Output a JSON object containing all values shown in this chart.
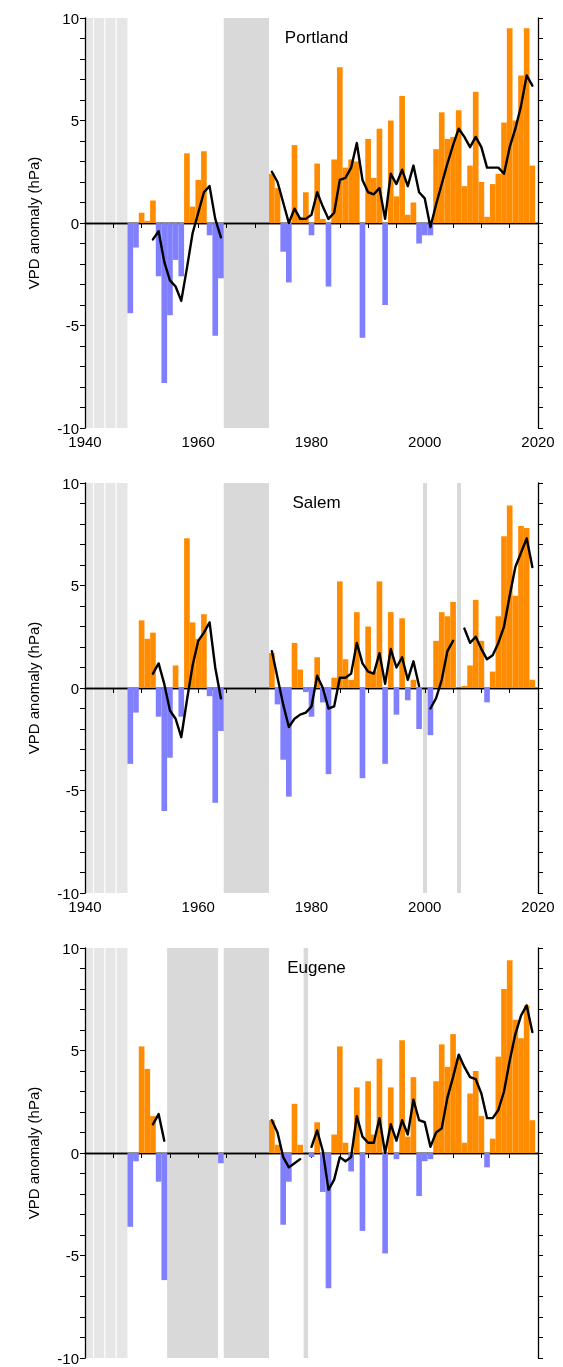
{
  "chart_data": [
    {
      "type": "bar",
      "title": "Portland",
      "ylabel": "VPD anomaly (hPa)",
      "xlim": [
        1940,
        2020
      ],
      "xticks": [
        1940,
        {
          "value": 1945,
          "label": null
        },
        {
          "value": 1950,
          "label": null
        },
        {
          "value": 1955,
          "label": null
        },
        1960,
        {
          "value": 1965,
          "label": null
        },
        {
          "value": 1970,
          "label": null
        },
        {
          "value": 1975,
          "label": null
        },
        1980,
        {
          "value": 1985,
          "label": null
        },
        {
          "value": 1990,
          "label": null
        },
        {
          "value": 1995,
          "label": null
        },
        2000,
        {
          "value": 2005,
          "label": null
        },
        {
          "value": 2010,
          "label": null
        },
        {
          "value": 2015,
          "label": null
        },
        2020
      ],
      "ylim": [
        -10,
        10
      ],
      "yticks": [
        -10,
        {
          "value": -9,
          "label": null
        },
        {
          "value": -8,
          "label": null
        },
        {
          "value": -7,
          "label": null
        },
        {
          "value": -6,
          "label": null
        },
        -5,
        {
          "value": -4,
          "label": null
        },
        {
          "value": -3,
          "label": null
        },
        {
          "value": -2,
          "label": null
        },
        {
          "value": -1,
          "label": null
        },
        0,
        {
          "value": 1,
          "label": null
        },
        {
          "value": 2,
          "label": null
        },
        {
          "value": 3,
          "label": null
        },
        {
          "value": 4,
          "label": null
        },
        5,
        {
          "value": 6,
          "label": null
        },
        {
          "value": 7,
          "label": null
        },
        {
          "value": 8,
          "label": null
        },
        {
          "value": 9,
          "label": null
        },
        10
      ],
      "bands": [
        {
          "axis": "x",
          "from": 1940,
          "to": 1941.4,
          "color": "#e6e6e6"
        },
        {
          "axis": "x",
          "from": 1941.6,
          "to": 1943.4,
          "color": "#e6e6e6"
        },
        {
          "axis": "x",
          "from": 1943.6,
          "to": 1945.4,
          "color": "#e6e6e6"
        },
        {
          "axis": "x",
          "from": 1945.6,
          "to": 1947.5,
          "color": "#e6e6e6"
        },
        {
          "axis": "x",
          "from": 1964.5,
          "to": 1972.5,
          "color": "#d9d9d9"
        }
      ],
      "series": [
        {
          "color": "#ff8c00",
          "x": [
            1950,
            1951,
            1952,
            1958,
            1959,
            1960,
            1961,
            1973,
            1974,
            1977,
            1978,
            1979,
            1981,
            1982,
            1984,
            1985,
            1986,
            1987,
            1988,
            1990,
            1991,
            1992,
            1994,
            1995,
            1996,
            1997,
            1998,
            2002,
            2003,
            2004,
            2005,
            2006,
            2007,
            2008,
            2009,
            2010,
            2011,
            2012,
            2013,
            2014,
            2015,
            2016,
            2017,
            2018,
            2019
          ],
          "values": [
            0.5,
            0.1,
            1.1,
            3.4,
            0.8,
            2.1,
            3.5,
            2.4,
            1.7,
            3.8,
            0.3,
            1.5,
            2.9,
            0.2,
            3.1,
            7.6,
            2.7,
            3.1,
            3.0,
            4.1,
            2.2,
            4.6,
            5.0,
            1.3,
            6.2,
            0.4,
            1.0,
            3.6,
            5.4,
            4.1,
            4.2,
            5.5,
            1.8,
            2.8,
            6.4,
            2.0,
            0.3,
            1.9,
            2.4,
            4.9,
            9.5,
            5.0,
            7.2,
            9.5,
            2.8
          ]
        },
        {
          "color": "#8080ff",
          "x": [
            1948,
            1949,
            1953,
            1954,
            1955,
            1956,
            1957,
            1962,
            1963,
            1964,
            1975,
            1976,
            1980,
            1983,
            1989,
            1993,
            1999,
            2000,
            2001
          ],
          "values": [
            -4.4,
            -1.2,
            -2.6,
            -7.8,
            -4.5,
            -1.8,
            -2.6,
            -0.6,
            -5.5,
            -2.7,
            -1.4,
            -2.9,
            -0.6,
            -3.1,
            -5.6,
            -4.0,
            -1.0,
            -0.6,
            -0.6
          ]
        },
        {
          "type": "line",
          "color": "#000000",
          "x": [
            1952,
            1953,
            1954,
            1955,
            1956,
            1957,
            1958,
            1959,
            1960,
            1961,
            1962,
            1963,
            1964,
            1965,
            1966,
            1967,
            1968,
            1969,
            1970,
            1971,
            1972,
            1973,
            1974,
            1975,
            1976,
            1977,
            1978,
            1979,
            1980,
            1981,
            1982,
            1983,
            1984,
            1985,
            1986,
            1987,
            1988,
            1989,
            1990,
            1991,
            1992,
            1993,
            1994,
            1995,
            1996,
            1997,
            1998,
            1999,
            2000,
            2001,
            2002,
            2003,
            2004,
            2005,
            2006,
            2007,
            2008,
            2009,
            2010,
            2011,
            2012,
            2013,
            2014,
            2015,
            2016,
            2017,
            2018,
            2019
          ],
          "values": [
            -0.8,
            -0.4,
            -1.9,
            -2.8,
            -3.1,
            -3.8,
            -2.2,
            -0.5,
            0.5,
            1.5,
            1.8,
            0.2,
            -0.7,
            null,
            null,
            null,
            null,
            null,
            null,
            null,
            null,
            2.5,
            2.0,
            1.0,
            0.0,
            0.7,
            0.2,
            0.2,
            0.4,
            1.5,
            0.8,
            0.2,
            0.5,
            2.1,
            2.2,
            2.7,
            3.9,
            2.1,
            1.5,
            1.4,
            1.7,
            0.2,
            2.4,
            1.9,
            2.6,
            1.8,
            2.8,
            1.5,
            1.2,
            -0.2,
            0.9,
            1.9,
            2.9,
            3.8,
            4.6,
            4.2,
            3.7,
            4.2,
            3.7,
            2.7,
            2.7,
            2.7,
            2.4,
            3.7,
            4.6,
            5.7,
            7.2,
            6.7
          ]
        }
      ]
    },
    {
      "type": "bar",
      "title": "Salem",
      "ylabel": "VPD anomaly (hPa)",
      "xlim": [
        1940,
        2020
      ],
      "xticks": [
        1940,
        {
          "value": 1945,
          "label": null
        },
        {
          "value": 1950,
          "label": null
        },
        {
          "value": 1955,
          "label": null
        },
        1960,
        {
          "value": 1965,
          "label": null
        },
        {
          "value": 1970,
          "label": null
        },
        {
          "value": 1975,
          "label": null
        },
        1980,
        {
          "value": 1985,
          "label": null
        },
        {
          "value": 1990,
          "label": null
        },
        {
          "value": 1995,
          "label": null
        },
        2000,
        {
          "value": 2005,
          "label": null
        },
        {
          "value": 2010,
          "label": null
        },
        {
          "value": 2015,
          "label": null
        },
        2020
      ],
      "ylim": [
        -10,
        10
      ],
      "yticks": [
        -10,
        {
          "value": -9,
          "label": null
        },
        {
          "value": -8,
          "label": null
        },
        {
          "value": -7,
          "label": null
        },
        {
          "value": -6,
          "label": null
        },
        -5,
        {
          "value": -4,
          "label": null
        },
        {
          "value": -3,
          "label": null
        },
        {
          "value": -2,
          "label": null
        },
        {
          "value": -1,
          "label": null
        },
        0,
        {
          "value": 1,
          "label": null
        },
        {
          "value": 2,
          "label": null
        },
        {
          "value": 3,
          "label": null
        },
        {
          "value": 4,
          "label": null
        },
        5,
        {
          "value": 6,
          "label": null
        },
        {
          "value": 7,
          "label": null
        },
        {
          "value": 8,
          "label": null
        },
        {
          "value": 9,
          "label": null
        },
        10
      ],
      "bands": [
        {
          "axis": "x",
          "from": 1940,
          "to": 1941.4,
          "color": "#e6e6e6"
        },
        {
          "axis": "x",
          "from": 1941.6,
          "to": 1943.4,
          "color": "#e6e6e6"
        },
        {
          "axis": "x",
          "from": 1943.6,
          "to": 1945.4,
          "color": "#e6e6e6"
        },
        {
          "axis": "x",
          "from": 1945.6,
          "to": 1947.5,
          "color": "#e6e6e6"
        },
        {
          "axis": "x",
          "from": 1964.5,
          "to": 1972.5,
          "color": "#d9d9d9"
        },
        {
          "axis": "x",
          "from": 1999.7,
          "to": 2000.4,
          "color": "#d9d9d9"
        },
        {
          "axis": "x",
          "from": 2005.7,
          "to": 2006.4,
          "color": "#d9d9d9"
        }
      ],
      "series": [
        {
          "color": "#ff8c00",
          "x": [
            1950,
            1951,
            1952,
            1956,
            1958,
            1959,
            1960,
            1961,
            1973,
            1977,
            1978,
            1981,
            1984,
            1985,
            1986,
            1987,
            1988,
            1990,
            1991,
            1992,
            1994,
            1996,
            1998,
            2002,
            2003,
            2004,
            2005,
            2007,
            2008,
            2009,
            2010,
            2012,
            2013,
            2014,
            2015,
            2016,
            2017,
            2018,
            2019
          ],
          "values": [
            3.3,
            2.4,
            2.7,
            1.1,
            7.3,
            3.2,
            2.4,
            3.6,
            1.7,
            2.2,
            0.9,
            1.5,
            0.5,
            5.2,
            1.4,
            0.4,
            3.7,
            3.0,
            0.8,
            5.2,
            3.7,
            3.4,
            0.4,
            2.3,
            3.7,
            3.5,
            4.2,
            0.1,
            1.1,
            4.3,
            2.3,
            0.8,
            3.5,
            7.4,
            8.9,
            4.5,
            7.9,
            7.8,
            0.4
          ]
        },
        {
          "color": "#8080ff",
          "x": [
            1948,
            1949,
            1953,
            1954,
            1955,
            1957,
            1962,
            1963,
            1964,
            1974,
            1975,
            1976,
            1979,
            1980,
            1982,
            1983,
            1989,
            1993,
            1995,
            1997,
            1999,
            2001,
            2011
          ],
          "values": [
            -3.7,
            -1.2,
            -1.4,
            -6.0,
            -3.4,
            -1.4,
            -0.4,
            -5.6,
            -2.1,
            -0.8,
            -3.5,
            -5.3,
            -0.2,
            -1.4,
            -0.7,
            -4.2,
            -4.4,
            -3.7,
            -1.3,
            -0.6,
            -2.0,
            -2.3,
            -0.7
          ]
        },
        {
          "type": "line",
          "color": "#000000",
          "x": [
            1952,
            1953,
            1954,
            1955,
            1956,
            1957,
            1958,
            1959,
            1960,
            1961,
            1962,
            1963,
            1964,
            1965,
            1966,
            1967,
            1968,
            1969,
            1970,
            1971,
            1972,
            1973,
            1974,
            1975,
            1976,
            1977,
            1978,
            1979,
            1980,
            1981,
            1982,
            1983,
            1984,
            1985,
            1986,
            1987,
            1988,
            1989,
            1990,
            1991,
            1992,
            1993,
            1994,
            1995,
            1996,
            1997,
            1998,
            1999,
            2000,
            2001,
            2002,
            2003,
            2004,
            2005,
            2006,
            2007,
            2008,
            2009,
            2010,
            2011,
            2012,
            2013,
            2014,
            2015,
            2016,
            2017,
            2018,
            2019
          ],
          "values": [
            0.7,
            1.2,
            0.2,
            -1.1,
            -1.5,
            -2.4,
            -0.6,
            1.1,
            2.3,
            2.7,
            3.2,
            1.0,
            -0.5,
            null,
            null,
            null,
            null,
            null,
            null,
            null,
            null,
            1.8,
            0.5,
            -0.8,
            -1.9,
            -1.5,
            -1.3,
            -1.2,
            -0.9,
            0.6,
            0.0,
            -1.0,
            -0.9,
            0.5,
            0.5,
            0.7,
            2.2,
            1.2,
            0.8,
            0.7,
            1.7,
            0.2,
            1.9,
            1.0,
            1.5,
            0.4,
            1.3,
            0.1,
            null,
            -1.0,
            -0.5,
            0.4,
            1.8,
            2.3,
            null,
            2.9,
            2.2,
            2.5,
            1.9,
            1.4,
            1.6,
            2.2,
            3.0,
            4.5,
            5.9,
            6.6,
            7.3,
            5.9
          ]
        }
      ]
    },
    {
      "type": "bar",
      "title": "Eugene",
      "ylabel": "VPD anomaly (hPa)",
      "tick_labels": "y",
      "xlim": [
        1940,
        2020
      ],
      "xticks": [
        1940,
        {
          "value": 1945,
          "label": null
        },
        {
          "value": 1950,
          "label": null
        },
        {
          "value": 1955,
          "label": null
        },
        1960,
        {
          "value": 1965,
          "label": null
        },
        {
          "value": 1970,
          "label": null
        },
        {
          "value": 1975,
          "label": null
        },
        1980,
        {
          "value": 1985,
          "label": null
        },
        {
          "value": 1990,
          "label": null
        },
        {
          "value": 1995,
          "label": null
        },
        2000,
        {
          "value": 2005,
          "label": null
        },
        {
          "value": 2010,
          "label": null
        },
        {
          "value": 2015,
          "label": null
        },
        2020
      ],
      "ylim": [
        -10,
        10
      ],
      "yticks": [
        -10,
        {
          "value": -9,
          "label": null
        },
        {
          "value": -8,
          "label": null
        },
        {
          "value": -7,
          "label": null
        },
        {
          "value": -6,
          "label": null
        },
        -5,
        {
          "value": -4,
          "label": null
        },
        {
          "value": -3,
          "label": null
        },
        {
          "value": -2,
          "label": null
        },
        {
          "value": -1,
          "label": null
        },
        0,
        {
          "value": 1,
          "label": null
        },
        {
          "value": 2,
          "label": null
        },
        {
          "value": 3,
          "label": null
        },
        {
          "value": 4,
          "label": null
        },
        5,
        {
          "value": 6,
          "label": null
        },
        {
          "value": 7,
          "label": null
        },
        {
          "value": 8,
          "label": null
        },
        {
          "value": 9,
          "label": null
        },
        10
      ],
      "bands": [
        {
          "axis": "x",
          "from": 1940,
          "to": 1941.4,
          "color": "#e6e6e6"
        },
        {
          "axis": "x",
          "from": 1941.6,
          "to": 1943.4,
          "color": "#e6e6e6"
        },
        {
          "axis": "x",
          "from": 1943.6,
          "to": 1945.4,
          "color": "#e6e6e6"
        },
        {
          "axis": "x",
          "from": 1945.6,
          "to": 1947.5,
          "color": "#e6e6e6"
        },
        {
          "axis": "x",
          "from": 1954.5,
          "to": 1963.5,
          "color": "#d9d9d9"
        },
        {
          "axis": "x",
          "from": 1964.5,
          "to": 1972.5,
          "color": "#d9d9d9"
        },
        {
          "axis": "x",
          "from": 1978.6,
          "to": 1979.4,
          "color": "#d9d9d9"
        }
      ],
      "series": [
        {
          "color": "#ff8c00",
          "x": [
            1950,
            1951,
            1952,
            1973,
            1974,
            1977,
            1978,
            1981,
            1984,
            1985,
            1986,
            1988,
            1990,
            1991,
            1992,
            1994,
            1996,
            1997,
            1998,
            2002,
            2003,
            2004,
            2005,
            2006,
            2007,
            2008,
            2009,
            2010,
            2012,
            2013,
            2014,
            2015,
            2016,
            2017,
            2018,
            2019
          ],
          "values": [
            5.2,
            4.1,
            1.8,
            1.6,
            0.4,
            2.4,
            0.4,
            1.5,
            0.9,
            5.2,
            0.5,
            3.2,
            3.5,
            0.9,
            4.6,
            3.2,
            5.5,
            0.8,
            3.7,
            3.5,
            5.3,
            4.2,
            5.8,
            4.6,
            0.5,
            2.9,
            4.0,
            1.8,
            0.7,
            4.7,
            8.0,
            9.4,
            6.5,
            5.6,
            7.2,
            1.6
          ]
        },
        {
          "color": "#8080ff",
          "x": [
            1948,
            1949,
            1953,
            1954,
            1964,
            1975,
            1976,
            1980,
            1982,
            1983,
            1987,
            1989,
            1993,
            1995,
            1999,
            2000,
            2001,
            2011
          ],
          "values": [
            -3.6,
            -0.4,
            -1.4,
            -6.2,
            -0.5,
            -3.5,
            -1.4,
            -0.2,
            -1.9,
            -6.6,
            -0.9,
            -3.8,
            -4.9,
            -0.3,
            -2.1,
            -0.4,
            -0.3,
            -0.7
          ]
        },
        {
          "type": "line",
          "color": "#000000",
          "x": [
            1952,
            1953,
            1954,
            1955,
            1956,
            1957,
            1958,
            1959,
            1960,
            1961,
            1962,
            1963,
            1964,
            1965,
            1966,
            1967,
            1968,
            1969,
            1970,
            1971,
            1972,
            1973,
            1974,
            1975,
            1976,
            1977,
            1978,
            1979,
            1980,
            1981,
            1982,
            1983,
            1984,
            1985,
            1986,
            1987,
            1988,
            1989,
            1990,
            1991,
            1992,
            1993,
            1994,
            1995,
            1996,
            1997,
            1998,
            1999,
            2000,
            2001,
            2002,
            2003,
            2004,
            2005,
            2006,
            2007,
            2008,
            2009,
            2010,
            2011,
            2012,
            2013,
            2014,
            2015,
            2016,
            2017,
            2018,
            2019
          ],
          "values": [
            1.4,
            1.9,
            0.6,
            null,
            null,
            null,
            null,
            null,
            null,
            null,
            null,
            null,
            null,
            null,
            null,
            null,
            null,
            null,
            null,
            null,
            null,
            1.6,
            1.0,
            -0.2,
            -0.7,
            -0.5,
            -0.3,
            null,
            0.3,
            1.1,
            0.1,
            -1.8,
            -1.3,
            -0.2,
            -0.4,
            -0.2,
            1.8,
            0.8,
            0.5,
            0.5,
            1.7,
            0.0,
            1.4,
            0.6,
            1.6,
            0.9,
            2.6,
            1.6,
            1.5,
            0.3,
            1.0,
            1.2,
            2.7,
            3.7,
            4.8,
            4.2,
            3.7,
            3.6,
            2.9,
            1.7,
            1.7,
            2.1,
            3.0,
            4.5,
            5.8,
            6.7,
            7.2,
            5.9
          ]
        }
      ]
    }
  ]
}
